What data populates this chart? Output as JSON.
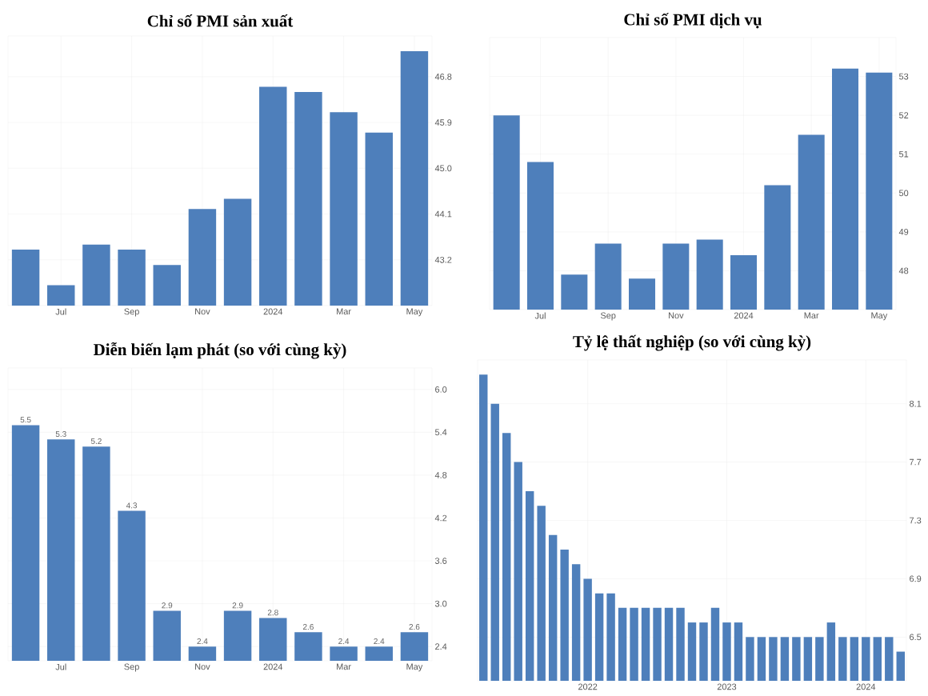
{
  "chart_data": [
    {
      "type": "bar",
      "title": "Chỉ số PMI sản xuất",
      "color": "#4e7fbb",
      "grid": true,
      "categories": [
        null,
        "Jul",
        null,
        "Sep",
        null,
        "Nov",
        null,
        "2024",
        null,
        "Mar",
        null,
        "May"
      ],
      "values": [
        43.4,
        42.7,
        43.5,
        43.4,
        43.1,
        44.2,
        44.4,
        46.6,
        46.5,
        46.1,
        45.7,
        47.3
      ],
      "ylim": [
        42.3,
        47.6
      ],
      "yticks": [
        43.2,
        44.1,
        {
          "value": 45.0,
          "label": "45.0"
        },
        45.9,
        46.8
      ]
    },
    {
      "type": "bar",
      "title": "Chỉ số PMI dịch vụ",
      "color": "#4e7fbb",
      "grid": true,
      "categories": [
        null,
        "Jul",
        null,
        "Sep",
        null,
        "Nov",
        null,
        "2024",
        null,
        "Mar",
        null,
        "May"
      ],
      "values": [
        52.0,
        50.8,
        47.9,
        48.7,
        47.8,
        48.7,
        48.8,
        48.4,
        50.2,
        51.5,
        53.2,
        53.1
      ],
      "ylim": [
        47,
        54
      ],
      "yticks": [
        48,
        49,
        50,
        51,
        52,
        53
      ]
    },
    {
      "type": "bar",
      "title": "Diễn biến lạm phát (so với cùng kỳ)",
      "color": "#4e7fbb",
      "grid": true,
      "data_labels": true,
      "categories": [
        null,
        "Jul",
        null,
        "Sep",
        null,
        "Nov",
        null,
        "2024",
        null,
        "Mar",
        null,
        "May"
      ],
      "values": [
        5.5,
        5.3,
        5.2,
        4.3,
        2.9,
        2.4,
        2.9,
        2.8,
        2.6,
        2.4,
        2.4,
        2.6
      ],
      "ylim": [
        2.2,
        6.3
      ],
      "yticks": [
        2.4,
        {
          "value": 3.0,
          "label": "3.0"
        },
        3.6,
        4.2,
        4.8,
        5.4,
        {
          "value": 6.0,
          "label": "6.0"
        }
      ]
    },
    {
      "type": "bar",
      "title": "Tỷ lệ thất nghiệp (so với cùng kỳ)",
      "color": "#4e7fbb",
      "grid": true,
      "categories": [
        null,
        null,
        null,
        null,
        null,
        null,
        null,
        null,
        null,
        "2022",
        null,
        null,
        null,
        null,
        null,
        null,
        null,
        null,
        null,
        null,
        null,
        "2023",
        null,
        null,
        null,
        null,
        null,
        null,
        null,
        null,
        null,
        null,
        null,
        "2024",
        null,
        null,
        null
      ],
      "values": [
        8.3,
        8.1,
        7.9,
        7.7,
        7.5,
        7.4,
        7.2,
        7.1,
        7.0,
        6.9,
        6.8,
        6.8,
        6.7,
        6.7,
        6.7,
        6.7,
        6.7,
        6.7,
        6.6,
        6.6,
        6.7,
        6.6,
        6.6,
        6.5,
        6.5,
        6.5,
        6.5,
        6.5,
        6.5,
        6.5,
        6.6,
        6.5,
        6.5,
        6.5,
        6.5,
        6.5,
        6.4
      ],
      "ylim": [
        6.2,
        8.4
      ],
      "yticks": [
        6.5,
        6.9,
        7.3,
        7.7,
        8.1
      ]
    }
  ]
}
